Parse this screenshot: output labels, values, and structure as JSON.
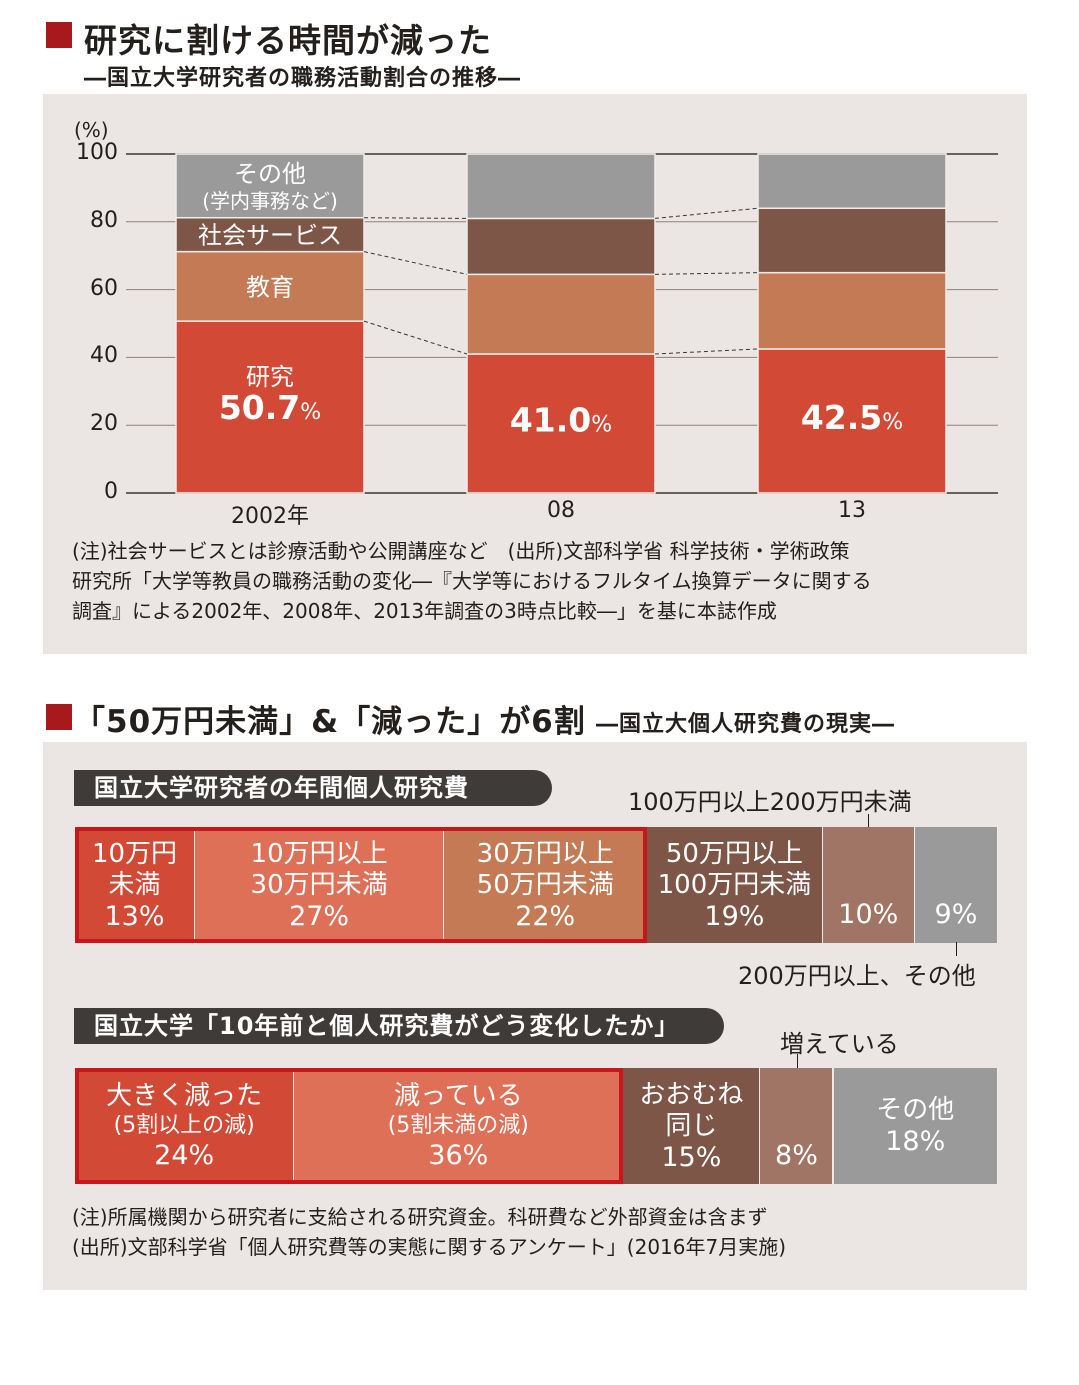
{
  "chart1": {
    "title": "研究に割ける時間が減った",
    "subtitle": "―国立大学研究者の職務活動割合の推移―",
    "unit": "(%)",
    "note": [
      "(注)社会サービスとは診療活動や公開講座など　(出所)文部科学省 科学技術・学術政策",
      "研究所「大学等教員の職務活動の変化―『大学等におけるフルタイム換算データに関する",
      "調査』による2002年、2008年、2013年調査の3時点比較―」を基に本誌作成"
    ]
  },
  "chart2": {
    "title_parts": [
      "「50万円未満」",
      "&",
      "「減った」",
      "が6割"
    ],
    "subtitle": "―国立大個人研究費の現実―",
    "bar1_label": "国立大学研究者の年間個人研究費",
    "bar1_callout_top": "100万円以上200万円未満",
    "bar1_callout_bottom": "200万円以上、その他",
    "bar2_label": "国立大学「10年前と個人研究費がどう変化したか」",
    "bar2_callout_top": "増えている",
    "note": [
      "(注)所属機関から研究者に支給される研究資金。科研費など外部資金は含まず",
      "(出所)文部科学省「個人研究費等の実態に関するアンケート」(2016年7月実施)"
    ]
  },
  "colors": {
    "research": "#d24a36",
    "education": "#c37a55",
    "social": "#7e5647",
    "other": "#9a9a9a",
    "accent_red": "#a8191b",
    "box_red": "#c8161d"
  },
  "chart_data": [
    {
      "type": "bar",
      "stacked": true,
      "categories": [
        "2002年",
        "08",
        "13"
      ],
      "series": [
        {
          "name": "研究",
          "values": [
            50.7,
            41.0,
            42.5
          ],
          "labels": [
            "50.7",
            "41.0",
            "42.5"
          ],
          "color": "#d24a36"
        },
        {
          "name": "教育",
          "values": [
            20.5,
            23.5,
            22.5
          ],
          "color": "#c37a55"
        },
        {
          "name": "社会サービス",
          "values": [
            10.0,
            16.5,
            19.0
          ],
          "color": "#7e5647"
        },
        {
          "name": "その他(学内事務など)",
          "values": [
            18.8,
            19.0,
            16.0
          ],
          "color": "#9a9a9a"
        }
      ],
      "ylabel": "(%)",
      "ylim": [
        0,
        100
      ],
      "yticks": [
        0,
        20,
        40,
        60,
        80,
        100
      ],
      "grid": true
    },
    {
      "type": "bar",
      "stacked": true,
      "orientation": "horizontal",
      "title": "国立大学研究者の年間個人研究費",
      "segments": [
        {
          "lines": [
            "10万円",
            "未満"
          ],
          "value": 13,
          "label": "13%",
          "color": "#d24a36"
        },
        {
          "lines": [
            "10万円以上",
            "30万円未満"
          ],
          "value": 27,
          "label": "27%",
          "color": "#df7058"
        },
        {
          "lines": [
            "30万円以上",
            "50万円未満"
          ],
          "value": 22,
          "label": "22%",
          "color": "#c37a55"
        },
        {
          "lines": [
            "50万円以上",
            "100万円未満"
          ],
          "value": 19,
          "label": "19%",
          "color": "#7e5647"
        },
        {
          "lines": [],
          "value": 10,
          "label": "10%",
          "color": "#a07565"
        },
        {
          "lines": [],
          "value": 9,
          "label": "9%",
          "color": "#9a9a9a"
        }
      ]
    },
    {
      "type": "bar",
      "stacked": true,
      "orientation": "horizontal",
      "title": "国立大学「10年前と個人研究費がどう変化したか」",
      "segments": [
        {
          "lines": [
            "大きく減った"
          ],
          "sub": "(5割以上の減)",
          "value": 24,
          "label": "24%",
          "color": "#d24a36"
        },
        {
          "lines": [
            "減っている"
          ],
          "sub": "(5割未満の減)",
          "value": 36,
          "label": "36%",
          "color": "#df7058"
        },
        {
          "lines": [
            "おおむね",
            "同じ"
          ],
          "value": 15,
          "label": "15%",
          "color": "#7e5647"
        },
        {
          "lines": [],
          "value": 8,
          "label": "8%",
          "color": "#a07565"
        },
        {
          "lines": [
            "その他"
          ],
          "value": 18,
          "label": "18%",
          "color": "#9a9a9a"
        }
      ]
    }
  ]
}
